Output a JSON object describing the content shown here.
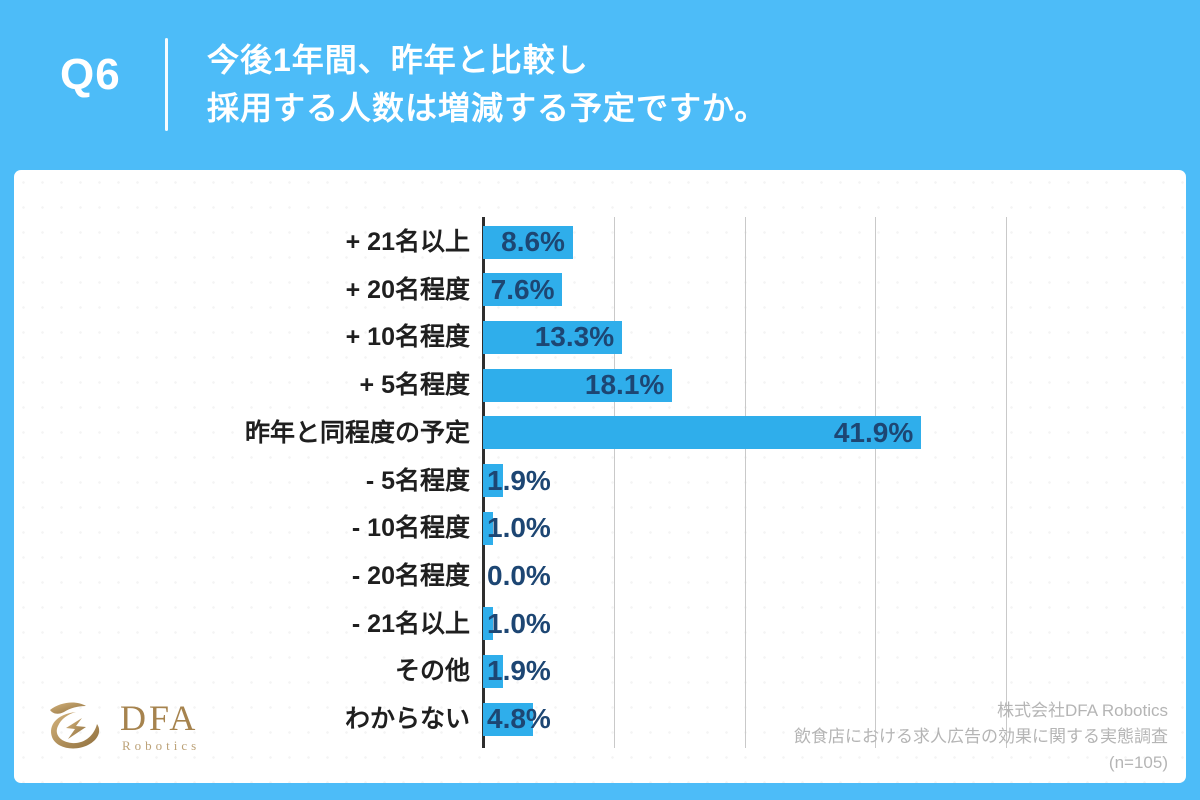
{
  "header": {
    "question_number": "Q6",
    "title_line1": "今後1年間、昨年と比較し",
    "title_line2": "採用する人数は増減する予定ですか。"
  },
  "chart_data": {
    "type": "bar",
    "orientation": "horizontal",
    "categories": [
      "+ 21名以上",
      "+ 20名程度",
      "+ 10名程度",
      "+ 5名程度",
      "昨年と同程度の予定",
      "- 5名程度",
      "- 10名程度",
      "- 20名程度",
      "- 21名以上",
      "その他",
      "わからない"
    ],
    "values": [
      8.6,
      7.6,
      13.3,
      18.1,
      41.9,
      1.9,
      1.0,
      0.0,
      1.0,
      1.9,
      4.8
    ],
    "value_labels": [
      "8.6%",
      "7.6%",
      "13.3%",
      "18.1%",
      "41.9%",
      "1.9%",
      "1.0%",
      "0.0%",
      "1.0%",
      "1.9%",
      "4.8%"
    ],
    "xlabel": "",
    "ylabel": "",
    "xlim": [
      0,
      50
    ],
    "gridline_interval": 12.5,
    "grid": true,
    "legend": false,
    "bar_color": "#2FAEEB",
    "value_text_color": "#1D4673",
    "category_text_color": "#1F1F1F"
  },
  "footer": {
    "logo_brand": "DFA",
    "logo_sub": "Robotics",
    "logo_color": "#A6834E",
    "attribution_line1": "株式会社DFA Robotics",
    "attribution_line2": "飲食店における求人広告の効果に関する実態調査",
    "attribution_line3": "(n=105)"
  },
  "colors": {
    "background": "#4DBCF8",
    "card": "#FFFFFF",
    "gridline": "#C9C9C9",
    "axis": "#2E2E2E",
    "attribution_text": "#B5B5B5"
  }
}
